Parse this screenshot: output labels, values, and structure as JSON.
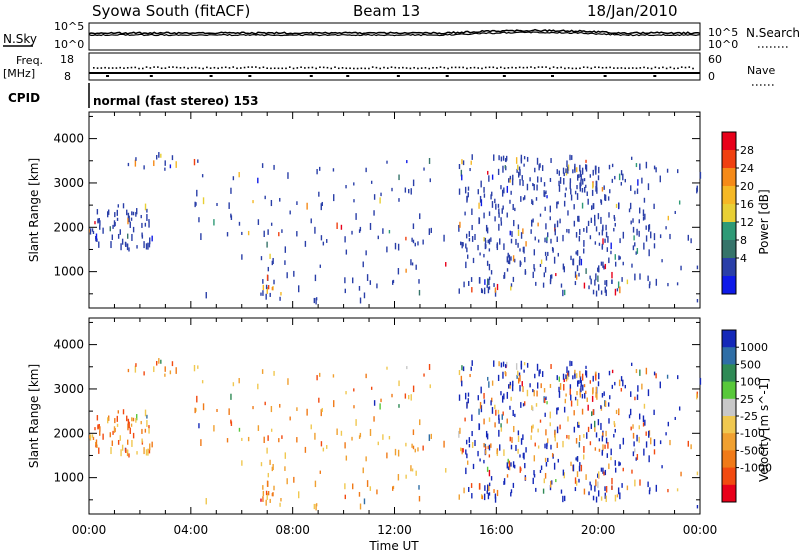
{
  "header": {
    "site": "Syowa South (fitACF)",
    "beam": "Beam 13",
    "date": "18/Jan/2010"
  },
  "panel_labels": {
    "nsky": "N.Sky",
    "nsearch": "N.Search",
    "freq": "Freq.",
    "freq_unit": "[MHz]",
    "nave": "Nave",
    "cpid": "CPID",
    "cpid_text": "normal (fast stereo) 153"
  },
  "noise_axis": {
    "left_ticks": [
      "10^5",
      "10^0"
    ],
    "right_ticks": [
      "10^5",
      "10^0"
    ]
  },
  "freq_axis": {
    "left_ticks": [
      "18",
      "8"
    ],
    "right_ticks": [
      "60",
      "0"
    ]
  },
  "power_colorbar": {
    "label": "Power [dB]",
    "ticks": [
      "28",
      "24",
      "20",
      "16",
      "12",
      "8",
      "4"
    ],
    "colors": [
      "#e8001a",
      "#f04010",
      "#f58a18",
      "#f5b825",
      "#e8cf35",
      "#2f9a76",
      "#36746a",
      "#2a3fa8",
      "#0e1ae8"
    ]
  },
  "velocity_colorbar": {
    "label": "Velocity [m s^-1]",
    "ticks": [
      "1000",
      "500",
      "100",
      "25",
      "-25",
      "-100",
      "-500",
      "-1000"
    ],
    "colors": [
      "#1428b8",
      "#2f6ea6",
      "#2f8a55",
      "#58c83a",
      "#c8c8c8",
      "#f0c850",
      "#f0a030",
      "#f07a18",
      "#f24a10",
      "#e8001a"
    ]
  },
  "chart_data": {
    "type": "heatmap",
    "title": "Syowa South (fitACF)  Beam 13  18/Jan/2010",
    "xlabel": "Time UT",
    "ylabel": "Slant Range [km]",
    "x_ticks": [
      "00:00",
      "04:00",
      "08:00",
      "12:00",
      "16:00",
      "20:00",
      "00:00"
    ],
    "y_ticks": [
      "1000",
      "2000",
      "3000",
      "4000"
    ],
    "xlim": [
      0,
      24
    ],
    "ylim": [
      180,
      4600
    ],
    "panels": [
      {
        "name": "Power",
        "units": "dB",
        "range": [
          0,
          32
        ]
      },
      {
        "name": "Velocity",
        "units": "m s^-1",
        "range": [
          -1000,
          1000
        ]
      }
    ],
    "backscatter_regions": [
      {
        "t": [
          0.0,
          2.5
        ],
        "r": [
          1500,
          2500
        ],
        "density": 0.5
      },
      {
        "t": [
          1.5,
          3.5
        ],
        "r": [
          3300,
          3700
        ],
        "density": 0.3
      },
      {
        "t": [
          6.8,
          7.4
        ],
        "r": [
          400,
          900
        ],
        "density": 0.8
      },
      {
        "t": [
          14.5,
          22.0
        ],
        "r": [
          500,
          3600
        ],
        "density": 0.35
      },
      {
        "t": [
          18.5,
          20.0
        ],
        "r": [
          2800,
          3400
        ],
        "density": 0.6
      },
      {
        "t": [
          4.0,
          14.0
        ],
        "r": [
          300,
          3500
        ],
        "density": 0.08
      },
      {
        "t": [
          22.0,
          24.0
        ],
        "r": [
          300,
          3500
        ],
        "density": 0.08
      }
    ]
  }
}
